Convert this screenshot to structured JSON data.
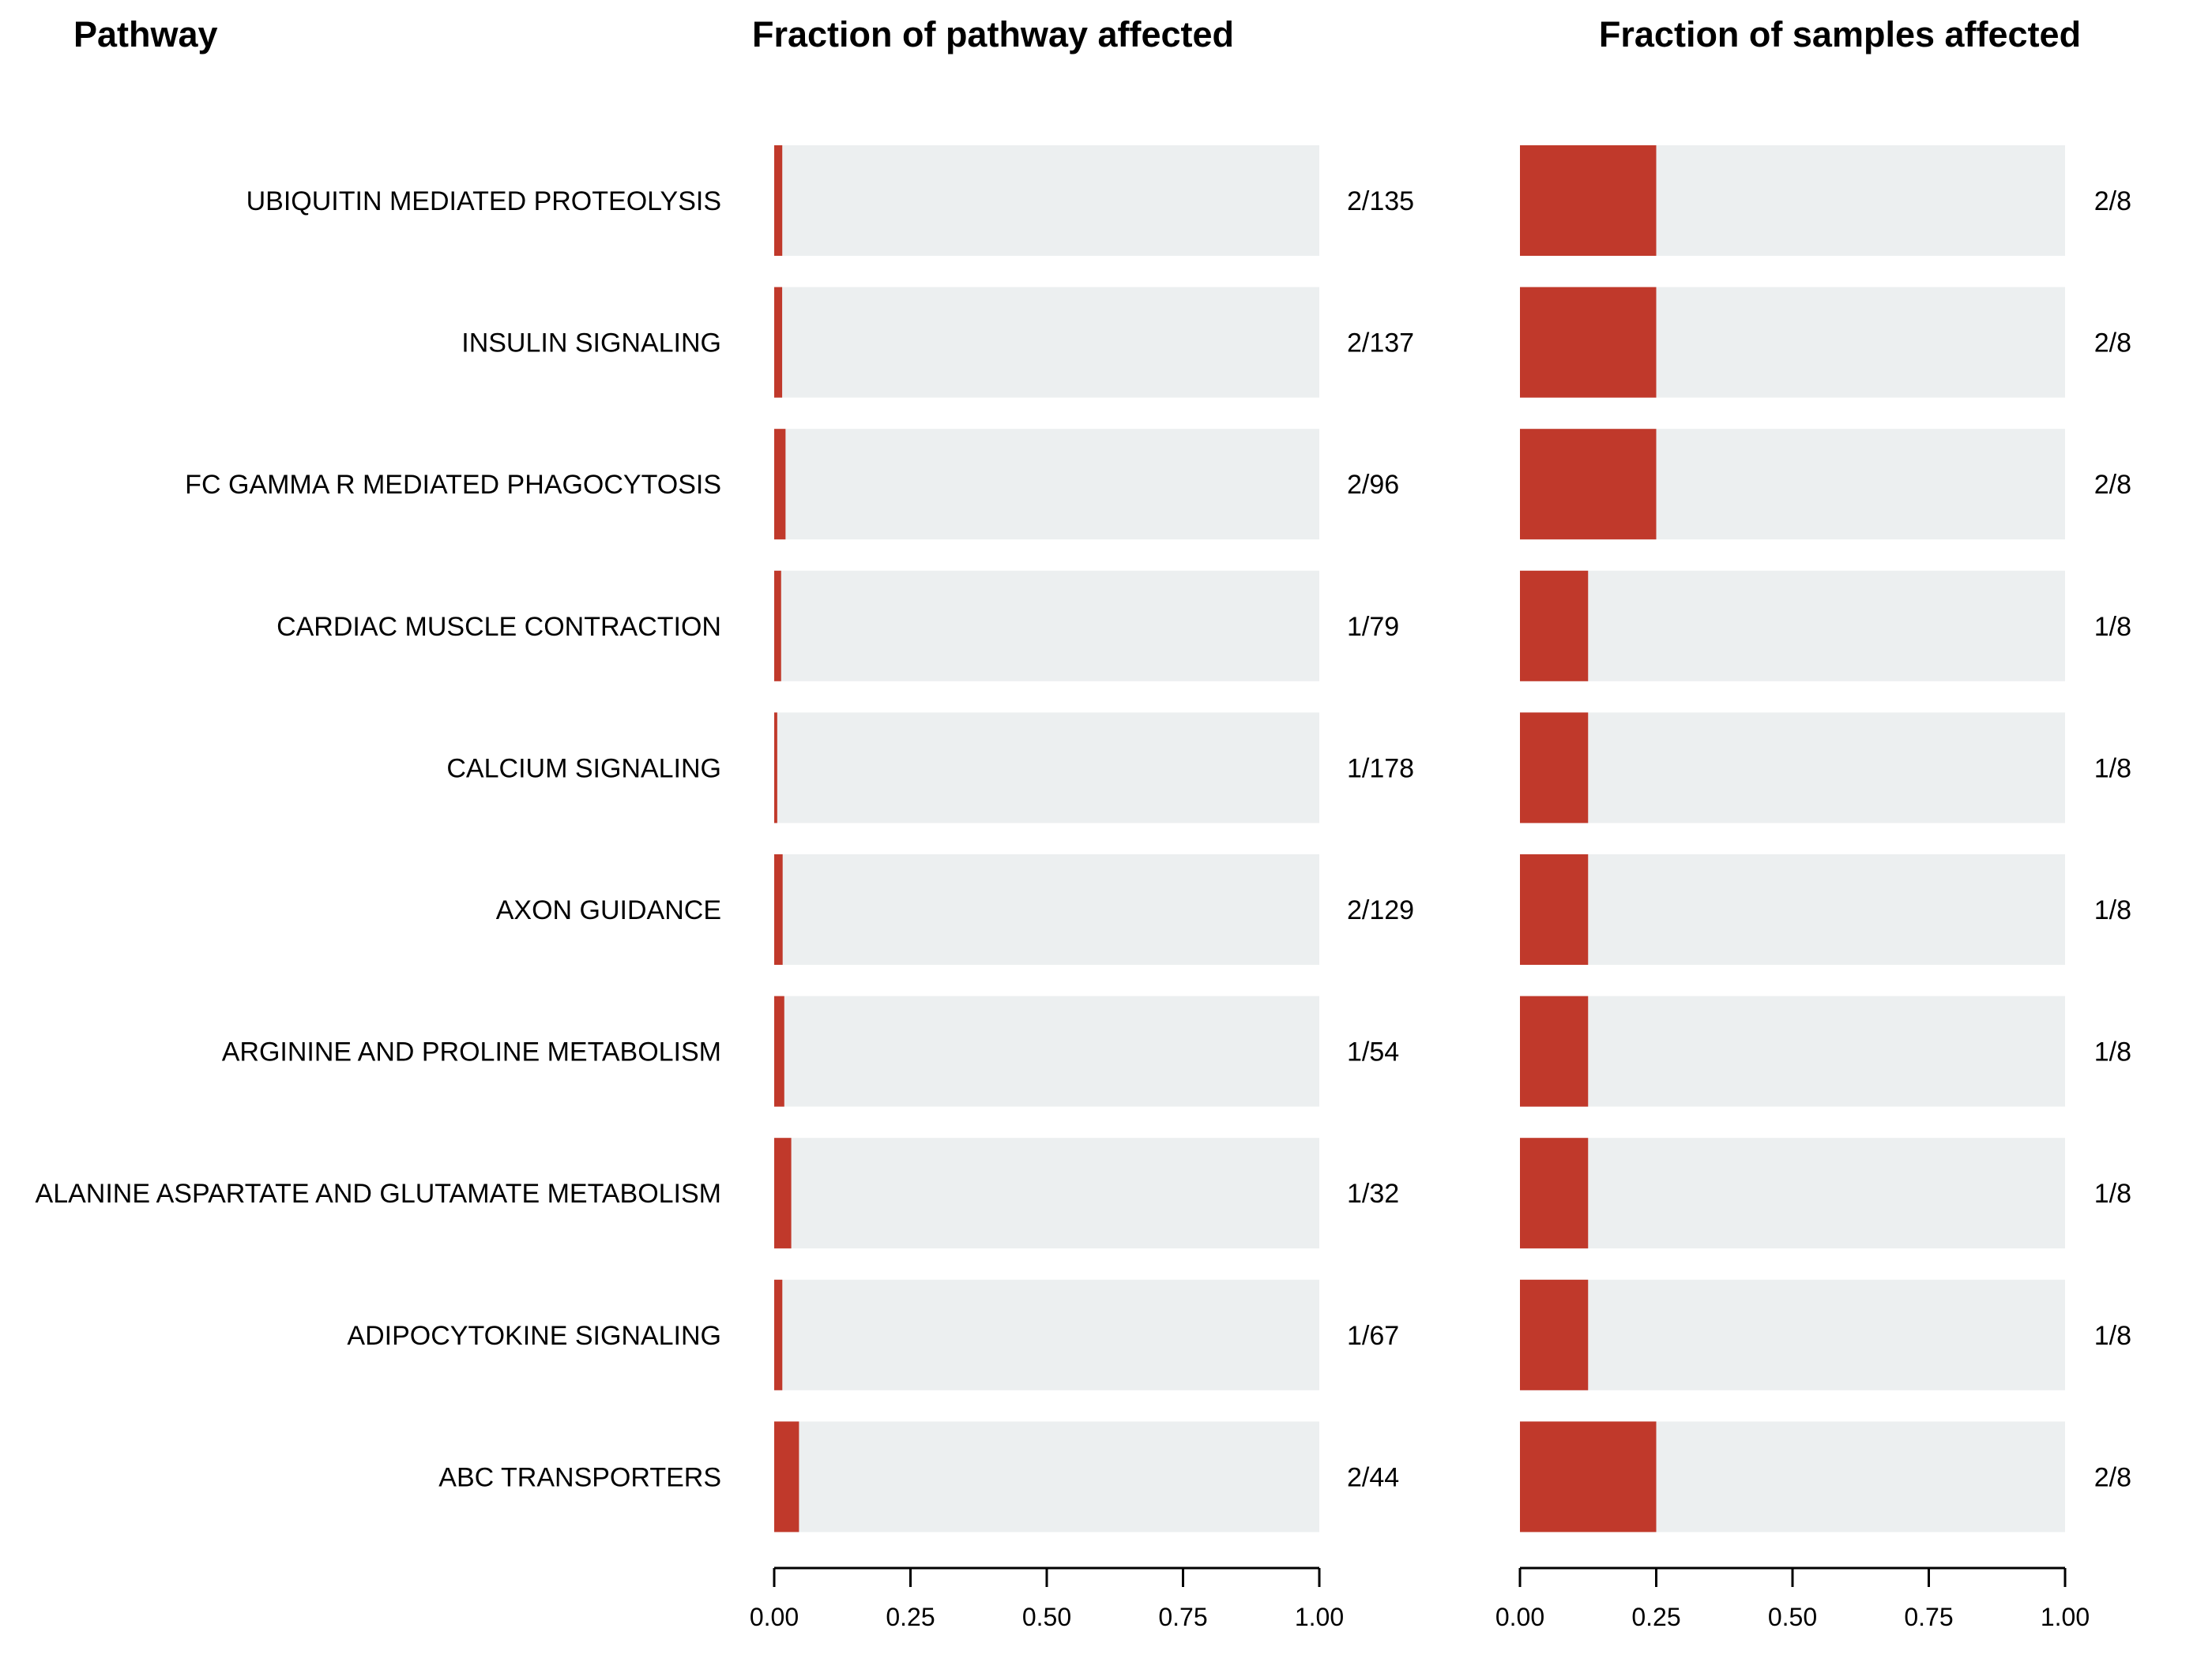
{
  "headers": {
    "pathway": "Pathway",
    "fraction_pathway": "Fraction of pathway affected",
    "fraction_samples": "Fraction of samples affected"
  },
  "colors": {
    "affected": "#c0392b",
    "background_bar": "#eceff0",
    "axis": "#000000"
  },
  "chart_data": [
    {
      "type": "bar",
      "orientation": "horizontal",
      "title": "Fraction of pathway affected",
      "categories": [
        "UBIQUITIN MEDIATED PROTEOLYSIS",
        "INSULIN SIGNALING",
        "FC GAMMA R MEDIATED PHAGOCYTOSIS",
        "CARDIAC MUSCLE CONTRACTION",
        "CALCIUM SIGNALING",
        "AXON GUIDANCE",
        "ARGININE AND PROLINE METABOLISM",
        "ALANINE ASPARTATE AND GLUTAMATE METABOLISM",
        "ADIPOCYTOKINE SIGNALING",
        "ABC TRANSPORTERS"
      ],
      "values": [
        0.0148,
        0.0146,
        0.0208,
        0.0127,
        0.0056,
        0.0155,
        0.0185,
        0.0313,
        0.0149,
        0.0455
      ],
      "labels": [
        "2/135",
        "2/137",
        "2/96",
        "1/79",
        "1/178",
        "2/129",
        "1/54",
        "1/32",
        "1/67",
        "2/44"
      ],
      "xlim": [
        0,
        1
      ],
      "ticks": [
        "0.00",
        "0.25",
        "0.50",
        "0.75",
        "1.00"
      ],
      "tick_values": [
        0,
        0.25,
        0.5,
        0.75,
        1.0
      ]
    },
    {
      "type": "bar",
      "orientation": "horizontal",
      "title": "Fraction of samples affected",
      "categories": [
        "UBIQUITIN MEDIATED PROTEOLYSIS",
        "INSULIN SIGNALING",
        "FC GAMMA R MEDIATED PHAGOCYTOSIS",
        "CARDIAC MUSCLE CONTRACTION",
        "CALCIUM SIGNALING",
        "AXON GUIDANCE",
        "ARGININE AND PROLINE METABOLISM",
        "ALANINE ASPARTATE AND GLUTAMATE METABOLISM",
        "ADIPOCYTOKINE SIGNALING",
        "ABC TRANSPORTERS"
      ],
      "values": [
        0.25,
        0.25,
        0.25,
        0.125,
        0.125,
        0.125,
        0.125,
        0.125,
        0.125,
        0.25
      ],
      "labels": [
        "2/8",
        "2/8",
        "2/8",
        "1/8",
        "1/8",
        "1/8",
        "1/8",
        "1/8",
        "1/8",
        "2/8"
      ],
      "xlim": [
        0,
        1
      ],
      "ticks": [
        "0.00",
        "0.25",
        "0.50",
        "0.75",
        "1.00"
      ],
      "tick_values": [
        0,
        0.25,
        0.5,
        0.75,
        1.0
      ]
    }
  ]
}
